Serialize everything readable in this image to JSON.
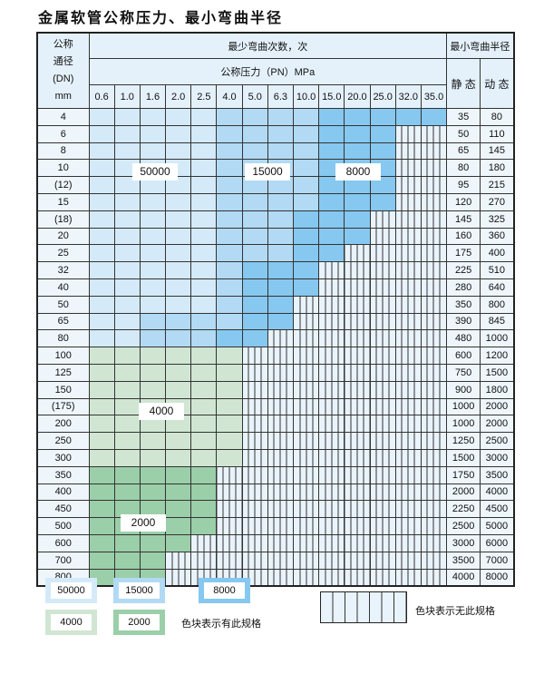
{
  "title": "金属软管公称压力、最小弯曲半径",
  "header": {
    "dn_label": [
      "公称",
      "通径",
      "(DN)",
      "mm"
    ],
    "cycles_label": "最少弯曲次数，次",
    "pressure_label": "公称压力（PN）MPa",
    "radius_label": "最小弯曲半径",
    "static_label": "静 态",
    "dynamic_label": "动 态",
    "pressures": [
      "0.6",
      "1.0",
      "1.6",
      "2.0",
      "2.5",
      "4.0",
      "5.0",
      "6.3",
      "10.0",
      "15.0",
      "20.0",
      "25.0",
      "32.0",
      "35.0"
    ]
  },
  "shade_legend": {
    "L": "50000",
    "M": "15000",
    "D": "8000",
    "G": "4000",
    "H": "2000",
    "X": "无此规格"
  },
  "colors": {
    "L": "#d4eaf9",
    "M": "#b2daf4",
    "D": "#86c8ef",
    "G": "#d0e6d3",
    "H": "#9bcfa9",
    "X": "#e9f3fb"
  },
  "rows": [
    {
      "dn": "4",
      "static": "35",
      "dynamic": "80",
      "cells": "LLLLLMMMMDDDDD"
    },
    {
      "dn": "6",
      "static": "50",
      "dynamic": "110",
      "cells": "LLLLLMMMMDDDXX"
    },
    {
      "dn": "8",
      "static": "65",
      "dynamic": "145",
      "cells": "LLLLLMMMMDDDXX"
    },
    {
      "dn": "10",
      "static": "80",
      "dynamic": "180",
      "cells": "LLLLLMMMMDDDXX"
    },
    {
      "dn": "(12)",
      "static": "95",
      "dynamic": "215",
      "cells": "LLLLLMMMMDDDXX"
    },
    {
      "dn": "15",
      "static": "120",
      "dynamic": "270",
      "cells": "LLLLLMMMMDDDXX"
    },
    {
      "dn": "(18)",
      "static": "145",
      "dynamic": "325",
      "cells": "LLLLLMMMDDDXXX"
    },
    {
      "dn": "20",
      "static": "160",
      "dynamic": "360",
      "cells": "LLLLLMMMDDDXXX"
    },
    {
      "dn": "25",
      "static": "175",
      "dynamic": "400",
      "cells": "LLLLLMMMDDXXXX"
    },
    {
      "dn": "32",
      "static": "225",
      "dynamic": "510",
      "cells": "LLLLLMDDDXXXXX"
    },
    {
      "dn": "40",
      "static": "280",
      "dynamic": "640",
      "cells": "LLLLLMDDDXXXXX"
    },
    {
      "dn": "50",
      "static": "350",
      "dynamic": "800",
      "cells": "LLLLLMDDXXXXXX"
    },
    {
      "dn": "65",
      "static": "390",
      "dynamic": "845",
      "cells": "LLMMMMDDXXXXXX"
    },
    {
      "dn": "80",
      "static": "480",
      "dynamic": "1000",
      "cells": "LLMMMDDXXXXXXX"
    },
    {
      "dn": "100",
      "static": "600",
      "dynamic": "1200",
      "cells": "GGGGGGXXXXXXXX"
    },
    {
      "dn": "125",
      "static": "750",
      "dynamic": "1500",
      "cells": "GGGGGGXXXXXXXX"
    },
    {
      "dn": "150",
      "static": "900",
      "dynamic": "1800",
      "cells": "GGGGGGXXXXXXXX"
    },
    {
      "dn": "(175)",
      "static": "1000",
      "dynamic": "2000",
      "cells": "GGGGGGXXXXXXXX"
    },
    {
      "dn": "200",
      "static": "1000",
      "dynamic": "2000",
      "cells": "GGGGGGXXXXXXXX"
    },
    {
      "dn": "250",
      "static": "1250",
      "dynamic": "2500",
      "cells": "GGGGGGXXXXXXXX"
    },
    {
      "dn": "300",
      "static": "1500",
      "dynamic": "3000",
      "cells": "GGGGGGXXXXXXXX"
    },
    {
      "dn": "350",
      "static": "1750",
      "dynamic": "3500",
      "cells": "HHHHHXXXXXXXXX"
    },
    {
      "dn": "400",
      "static": "2000",
      "dynamic": "4000",
      "cells": "HHHHHXXXXXXXXX"
    },
    {
      "dn": "450",
      "static": "2250",
      "dynamic": "4500",
      "cells": "HHHHHXXXXXXXXX"
    },
    {
      "dn": "500",
      "static": "2500",
      "dynamic": "5000",
      "cells": "HHHHHXXXXXXXXX"
    },
    {
      "dn": "600",
      "static": "3000",
      "dynamic": "6000",
      "cells": "HHHHXXXXXXXXXX"
    },
    {
      "dn": "700",
      "static": "3500",
      "dynamic": "7000",
      "cells": "HHHXXXXXXXXXXX"
    },
    {
      "dn": "800",
      "static": "4000",
      "dynamic": "8000",
      "cells": "HHHXXXXXXXXXXX"
    }
  ],
  "region_labels": {
    "a": "50000",
    "b": "15000",
    "c": "8000",
    "d": "4000",
    "e": "2000"
  },
  "legend": {
    "items": [
      "50000",
      "15000",
      "8000",
      "4000",
      "2000"
    ],
    "has_spec_text": "色块表示有此规格",
    "no_spec_text": "色块表示无此规格"
  }
}
